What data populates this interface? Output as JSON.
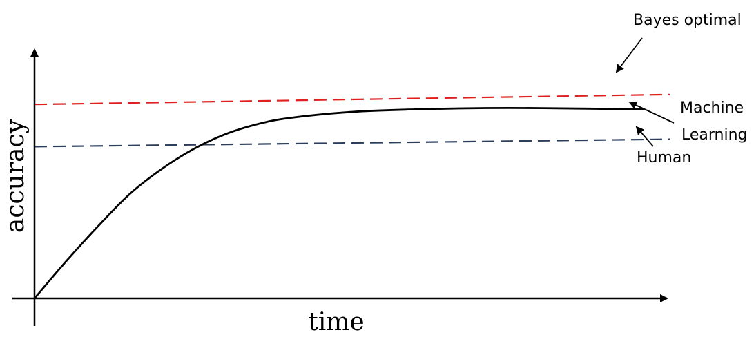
{
  "chart_data": {
    "type": "line",
    "xlabel": "time",
    "ylabel": "accuracy",
    "xlim": [
      0,
      10
    ],
    "ylim": [
      0,
      10
    ],
    "grid": false,
    "series": [
      {
        "name": "Machine Learning",
        "style": "solid",
        "color": "#000000",
        "points": [
          [
            0.0,
            0.0
          ],
          [
            0.5,
            1.5
          ],
          [
            1.0,
            2.9
          ],
          [
            1.5,
            4.2
          ],
          [
            2.0,
            5.2
          ],
          [
            2.5,
            6.0
          ],
          [
            3.0,
            6.6
          ],
          [
            3.5,
            7.0
          ],
          [
            4.0,
            7.25
          ],
          [
            5.0,
            7.5
          ],
          [
            6.0,
            7.6
          ],
          [
            7.0,
            7.65
          ],
          [
            8.0,
            7.65
          ],
          [
            9.6,
            7.6
          ]
        ]
      },
      {
        "name": "Bayes optimal",
        "style": "dashed",
        "color": "#e02020",
        "points": [
          [
            0.0,
            7.8
          ],
          [
            10.0,
            8.2
          ]
        ]
      },
      {
        "name": "Human",
        "style": "dashed",
        "color": "#2c3e5c",
        "points": [
          [
            0.0,
            6.1
          ],
          [
            10.0,
            6.4
          ]
        ]
      }
    ],
    "annotations": {
      "bayes": "Bayes optimal",
      "ml_line1": "Machine",
      "ml_line2": "Learning",
      "human": "Human"
    }
  }
}
